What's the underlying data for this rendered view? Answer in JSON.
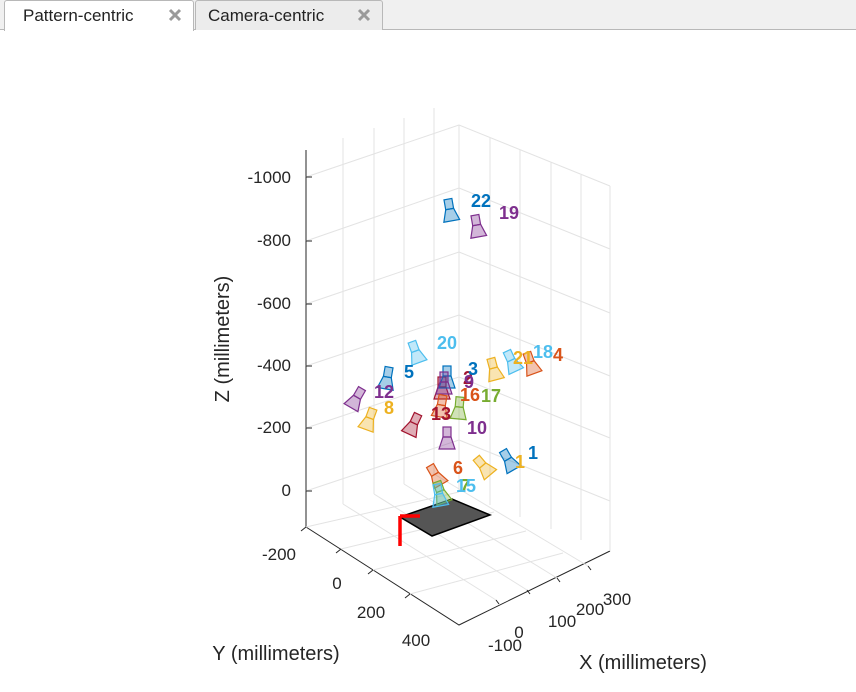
{
  "tabs": [
    {
      "label": "Pattern-centric",
      "active": true
    },
    {
      "label": "Camera-centric",
      "active": false
    }
  ],
  "chart_data": {
    "type": "3d-scatter",
    "title": "",
    "xlabel": "X (millimeters)",
    "ylabel": "Y (millimeters)",
    "zlabel": "Z (millimeters)",
    "x_ticks": [
      "-100",
      "0",
      "100",
      "200",
      "300"
    ],
    "y_ticks": [
      "-200",
      "0",
      "200",
      "400"
    ],
    "z_ticks": [
      "-1000",
      "-800",
      "-600",
      "-400",
      "-200",
      "0"
    ],
    "grid": true,
    "cameras": [
      {
        "label": "1",
        "color": "#0072BD"
      },
      {
        "label": "1",
        "color": "#EDB120"
      },
      {
        "label": "2",
        "color": "#A2142F"
      },
      {
        "label": "3",
        "color": "#0072BD"
      },
      {
        "label": "4",
        "color": "#D95319"
      },
      {
        "label": "5",
        "color": "#0072BD"
      },
      {
        "label": "6",
        "color": "#D95319"
      },
      {
        "label": "7",
        "color": "#77AC30"
      },
      {
        "label": "8",
        "color": "#EDB120"
      },
      {
        "label": "9",
        "color": "#7E2F8E"
      },
      {
        "label": "10",
        "color": "#7E2F8E"
      },
      {
        "label": "12",
        "color": "#7E2F8E"
      },
      {
        "label": "13",
        "color": "#A2142F"
      },
      {
        "label": "15",
        "color": "#4DBEEE"
      },
      {
        "label": "16",
        "color": "#D95319"
      },
      {
        "label": "17",
        "color": "#77AC30"
      },
      {
        "label": "18",
        "color": "#4DBEEE"
      },
      {
        "label": "19",
        "color": "#7E2F8E"
      },
      {
        "label": "20",
        "color": "#4DBEEE"
      },
      {
        "label": "21",
        "color": "#EDB120"
      },
      {
        "label": "22",
        "color": "#0072BD"
      }
    ]
  }
}
